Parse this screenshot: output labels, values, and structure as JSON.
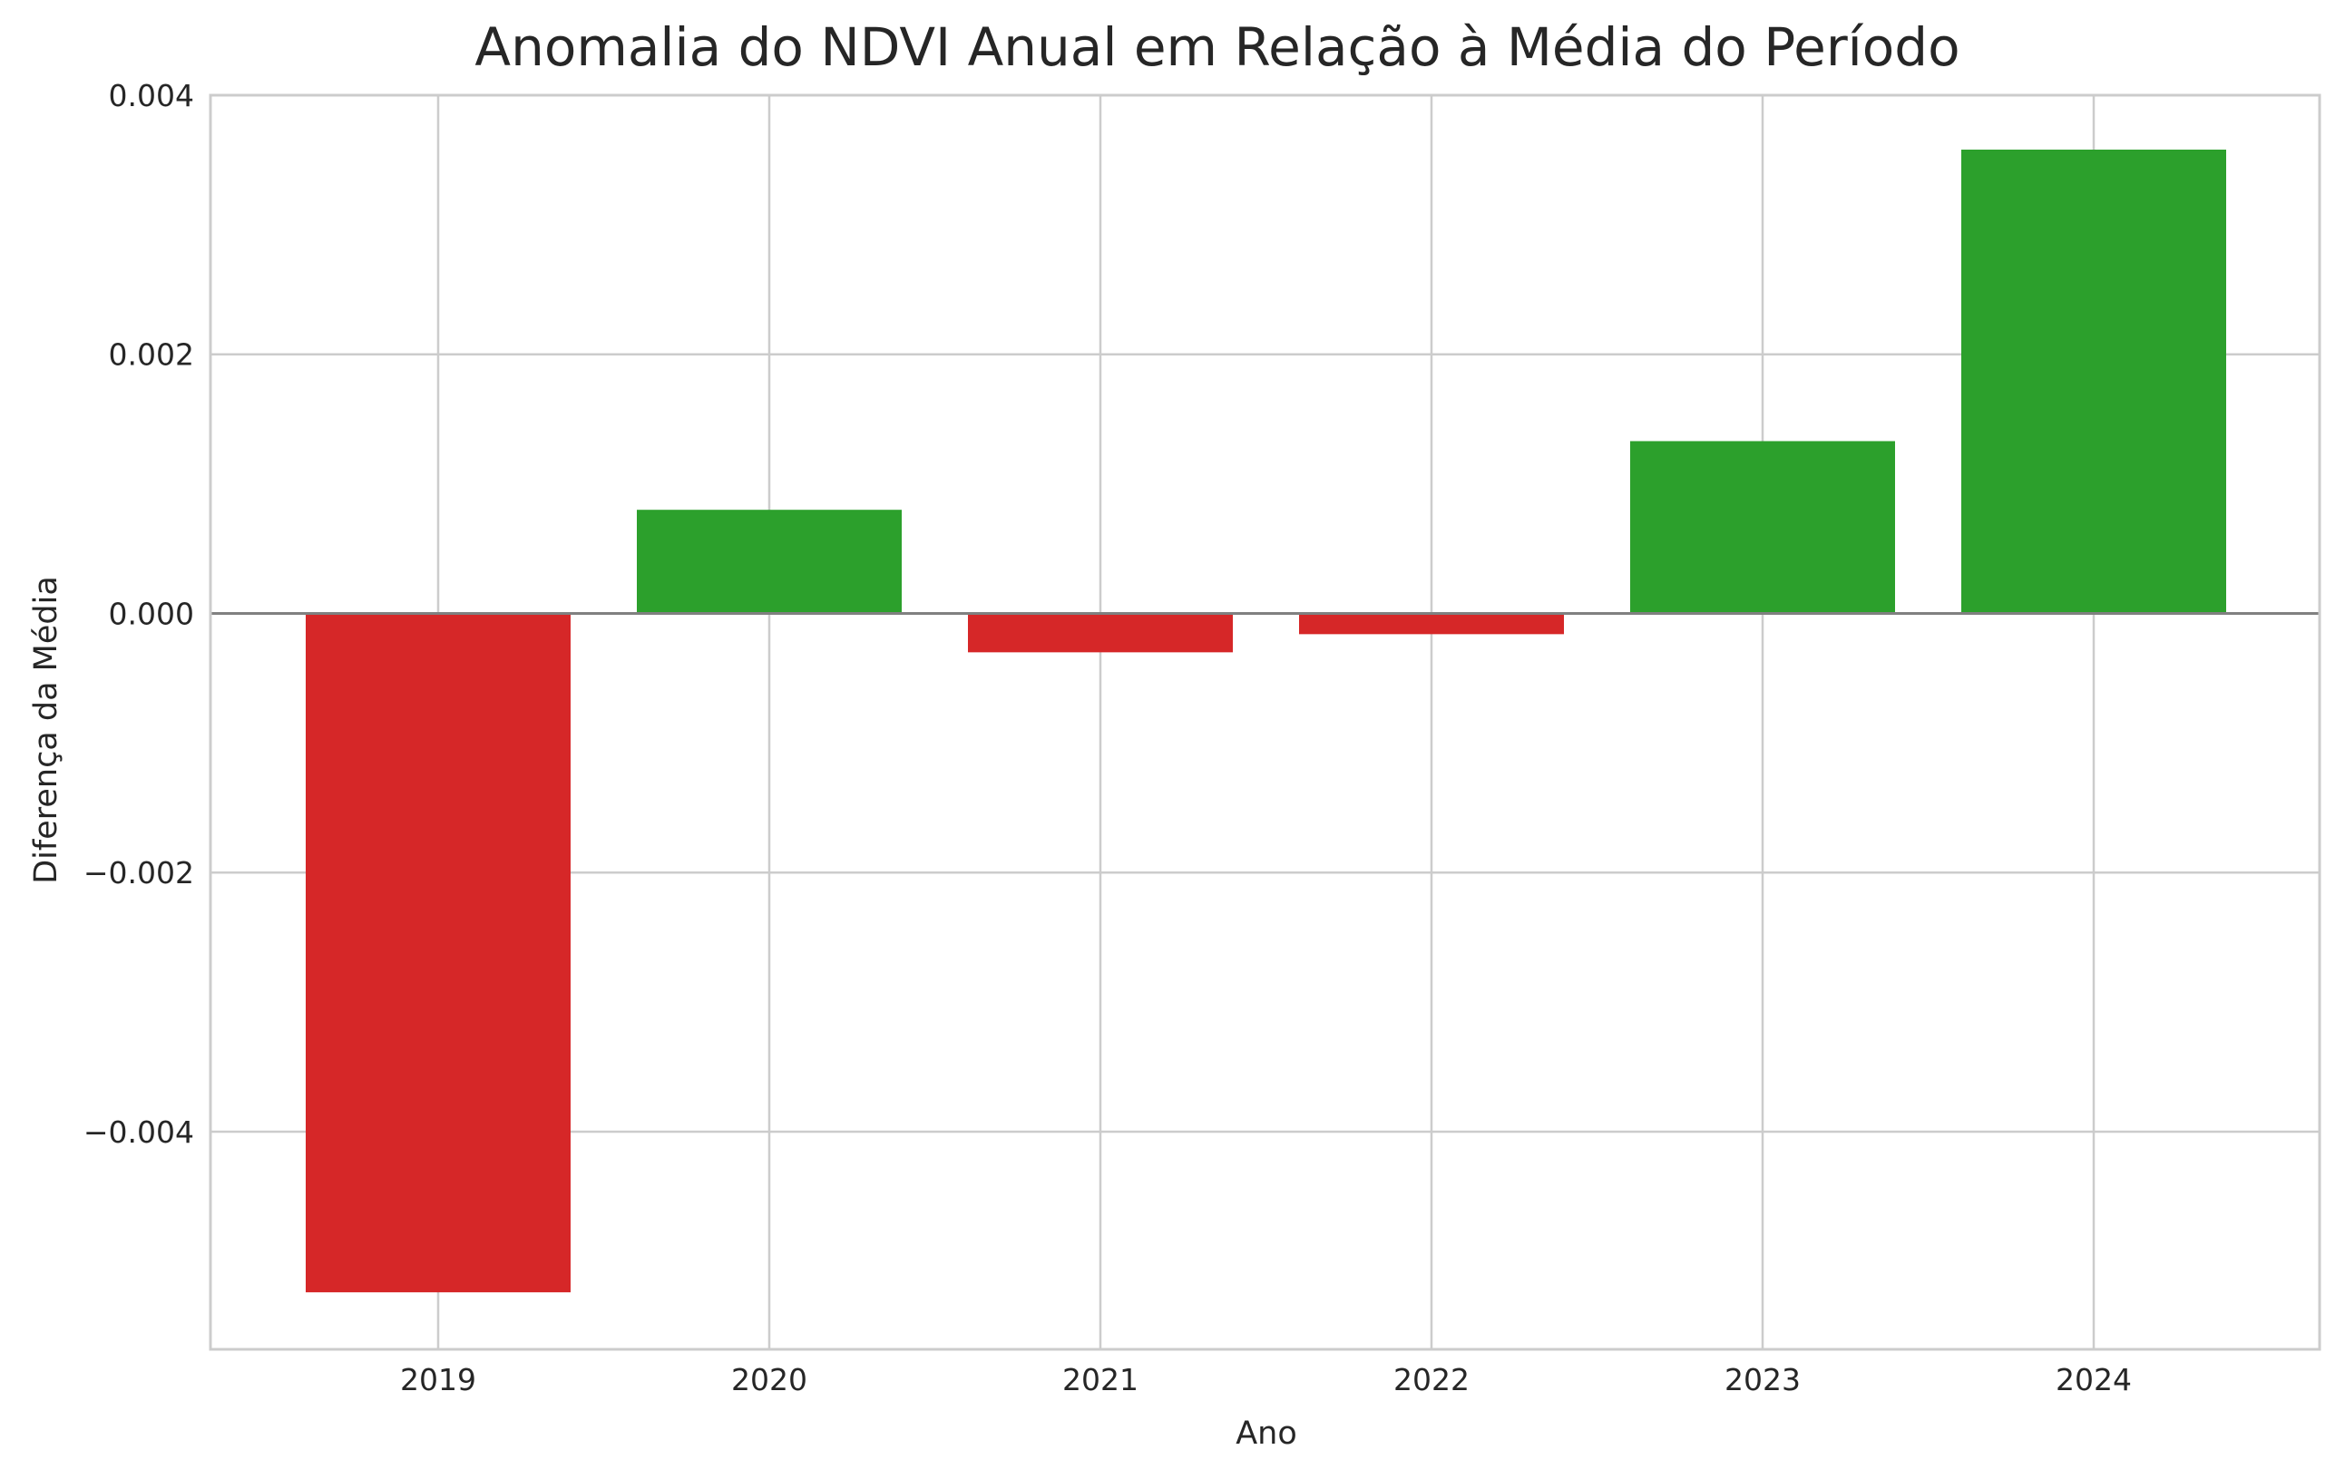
{
  "chart_data": {
    "type": "bar",
    "title": "Anomalia do NDVI Anual em Relação à Média do Período",
    "xlabel": "Ano",
    "ylabel": "Diferença da Média",
    "categories": [
      "2019",
      "2020",
      "2021",
      "2022",
      "2023",
      "2024"
    ],
    "values": [
      -0.00524,
      0.0008,
      -0.0003,
      -0.00016,
      0.00133,
      0.00358
    ],
    "ylim": [
      -0.00568,
      0.004
    ],
    "yticks": [
      -0.004,
      -0.002,
      0.0,
      0.002,
      0.004
    ],
    "ytick_labels": [
      "−0.004",
      "−0.002",
      "0.000",
      "0.002",
      "0.004"
    ],
    "grid": true,
    "zero_line": true,
    "colors": {
      "positive": "#2ca02c",
      "negative": "#d62728",
      "grid": "#cccccc",
      "zero_line": "#808080",
      "text": "#262626"
    }
  }
}
